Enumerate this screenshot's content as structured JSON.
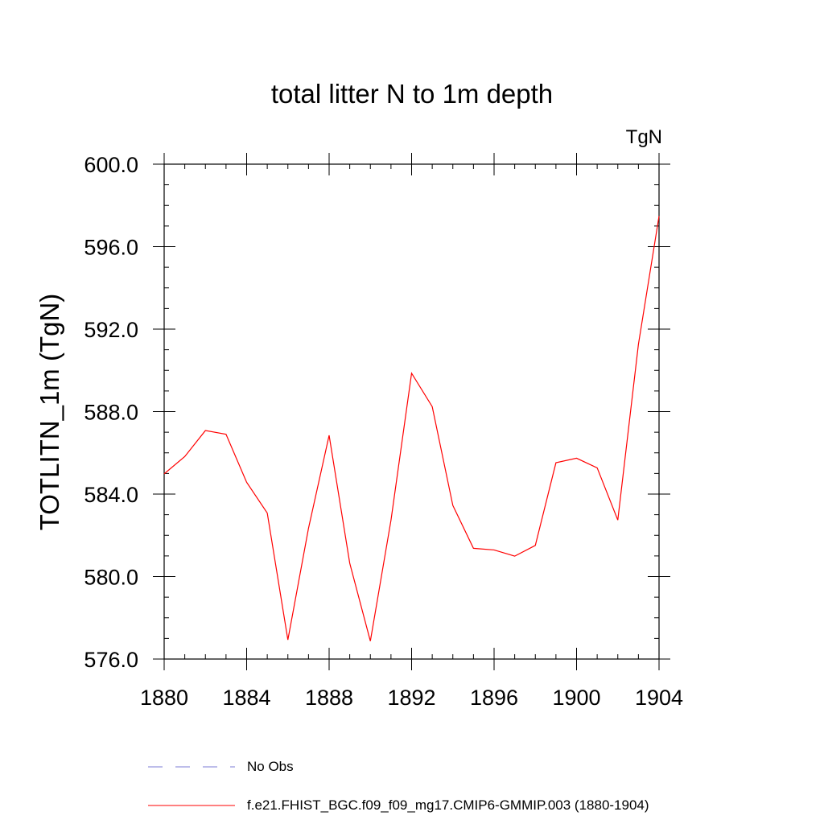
{
  "chart_data": {
    "type": "line",
    "title": "total litter N to 1m depth",
    "units_label": "TgN",
    "ylabel": "TOTLITN_1m  (TgN)",
    "xlabel": "",
    "xlim": [
      1880,
      1904
    ],
    "ylim": [
      576,
      600
    ],
    "x_ticks": [
      1880,
      1884,
      1888,
      1892,
      1896,
      1900,
      1904
    ],
    "x_tick_labels": [
      "1880",
      "1884",
      "1888",
      "1892",
      "1896",
      "1900",
      "1904"
    ],
    "y_ticks": [
      576,
      580,
      584,
      588,
      592,
      596,
      600
    ],
    "y_tick_labels": [
      "576.0",
      "580.0",
      "584.0",
      "588.0",
      "592.0",
      "596.0",
      "600.0"
    ],
    "x": [
      1880,
      1881,
      1882,
      1883,
      1884,
      1885,
      1886,
      1887,
      1888,
      1889,
      1890,
      1891,
      1892,
      1893,
      1894,
      1895,
      1896,
      1897,
      1898,
      1899,
      1900,
      1901,
      1902,
      1903,
      1904
    ],
    "series": [
      {
        "name": "f.e21.FHIST_BGC.f09_f09_mg17.CMIP6-GMMIP.003 (1880-1904)",
        "color": "#ff0000",
        "style": "solid",
        "values": [
          584.98,
          585.82,
          587.08,
          586.9,
          584.57,
          583.08,
          576.93,
          582.34,
          586.85,
          580.65,
          576.87,
          582.73,
          589.86,
          588.24,
          583.45,
          581.37,
          581.29,
          580.99,
          581.51,
          585.52,
          585.74,
          585.27,
          582.74,
          591.26,
          597.48
        ]
      }
    ],
    "legend": [
      {
        "label": "No Obs",
        "color": "#7b7bd6",
        "style": "dashed"
      },
      {
        "label": "f.e21.FHIST_BGC.f09_f09_mg17.CMIP6-GMMIP.003 (1880-1904)",
        "color": "#ff0000",
        "style": "solid"
      }
    ],
    "legend_position": "bottom"
  }
}
